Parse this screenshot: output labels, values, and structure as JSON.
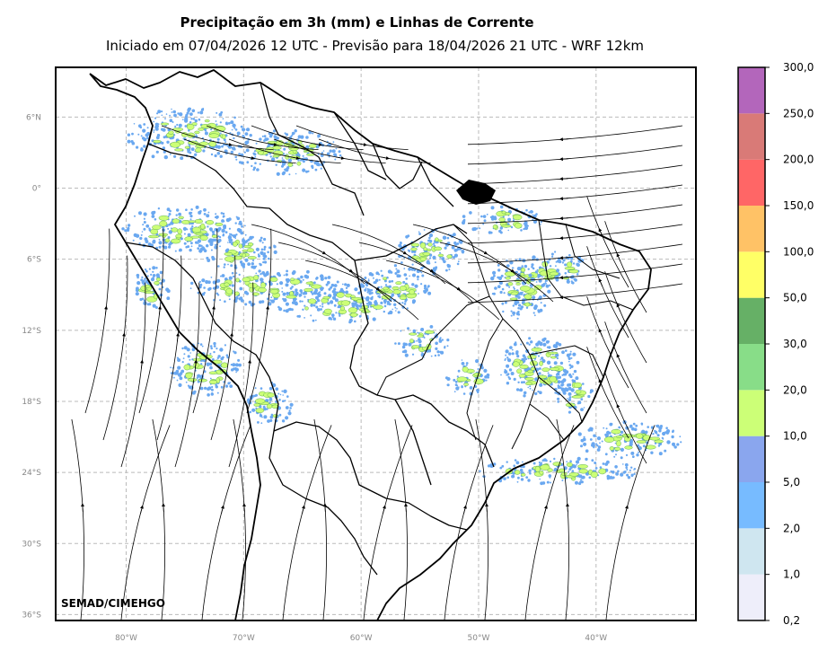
{
  "header": {
    "title": "Precipitação em 3h (mm) e Linhas de Corrente",
    "subtitle": "Iniciado em 07/04/2026 12 UTC - Previsão para 18/04/2026 21 UTC - WRF 12km"
  },
  "map": {
    "credit": "SEMAD/CIMEHGO",
    "lat_labels": [
      "6°N",
      "0°",
      "6°S",
      "12°S",
      "18°S",
      "24°S",
      "30°S",
      "36°S"
    ],
    "lon_labels": [
      "80°W",
      "70°W",
      "60°W",
      "50°W",
      "40°W"
    ],
    "lon_range": [
      -86,
      -31.5
    ],
    "lat_range": [
      -36.5,
      10.2
    ]
  },
  "colorbar": {
    "levels": [
      "0,2",
      "1,0",
      "2,0",
      "5,0",
      "10,0",
      "20,0",
      "30,0",
      "50,0",
      "100,0",
      "150,0",
      "200,0",
      "250,0",
      "300,0"
    ],
    "colors": [
      "#eeeefa",
      "#cfe6f0",
      "#77bbff",
      "#8aa6ee",
      "#ccff77",
      "#88dd88",
      "#66b066",
      "#ffff66",
      "#ffc266",
      "#ff6666",
      "#d97a77",
      "#b366bb"
    ]
  },
  "colors": {
    "grid": "#bbbbbb",
    "streamline": "#000000",
    "rain": "#6aa8f0",
    "rain_heavy": "#ccff77"
  }
}
